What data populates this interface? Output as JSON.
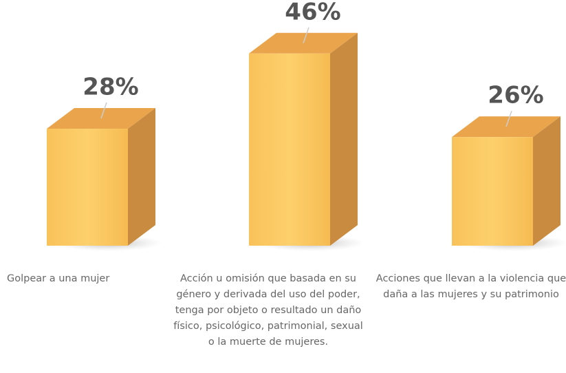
{
  "chart_data": {
    "type": "bar3d",
    "categories": [
      "Golpear a una mujer",
      "Acción u omisión que basada en su género y derivada del uso del poder, tenga por objeto o resultado un daño físico, psicológico, patrimonial, sexual o la muerte de mujeres.",
      "Acciones que llevan a la violencia que daña a las mujeres y su patrimonio"
    ],
    "values": [
      28,
      46,
      26
    ],
    "value_labels": [
      "28%",
      "46%",
      "26%"
    ],
    "color": "#fbc65a"
  }
}
